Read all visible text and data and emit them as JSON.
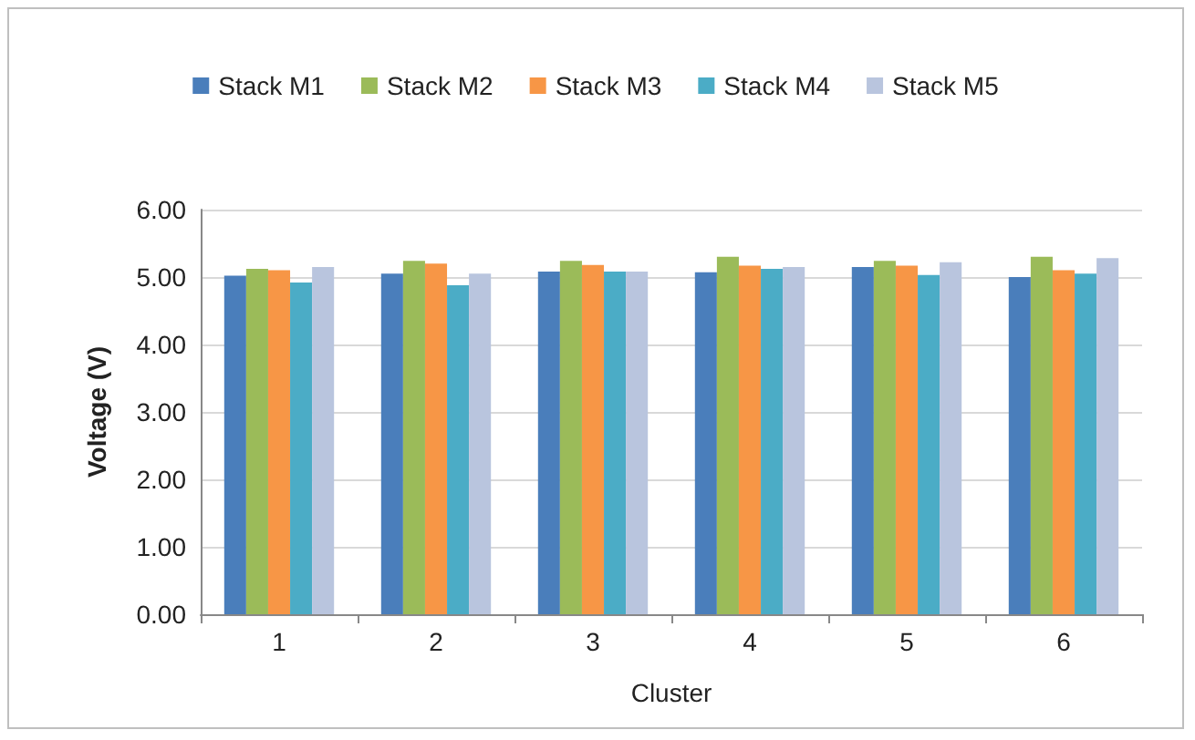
{
  "chart_data": {
    "type": "bar",
    "xlabel": "Cluster",
    "ylabel": "Voltage (V)",
    "categories": [
      "1",
      "2",
      "3",
      "4",
      "5",
      "6"
    ],
    "series": [
      {
        "name": "Stack M1",
        "color": "#4a7ebb",
        "values": [
          5.02,
          5.05,
          5.08,
          5.07,
          5.15,
          5.0
        ]
      },
      {
        "name": "Stack M2",
        "color": "#9bbb59",
        "values": [
          5.12,
          5.24,
          5.24,
          5.3,
          5.24,
          5.3
        ]
      },
      {
        "name": "Stack M3",
        "color": "#f79646",
        "values": [
          5.1,
          5.2,
          5.18,
          5.17,
          5.17,
          5.1
        ]
      },
      {
        "name": "Stack M4",
        "color": "#4bacc6",
        "values": [
          4.92,
          4.88,
          5.08,
          5.12,
          5.03,
          5.05
        ]
      },
      {
        "name": "Stack M5",
        "color": "#b9c5de",
        "values": [
          5.15,
          5.05,
          5.08,
          5.15,
          5.22,
          5.28
        ]
      }
    ],
    "ylim": [
      0,
      6
    ],
    "yticks": [
      {
        "value": 0,
        "label": "0.00"
      },
      {
        "value": 1,
        "label": "1.00"
      },
      {
        "value": 2,
        "label": "2.00"
      },
      {
        "value": 3,
        "label": "3.00"
      },
      {
        "value": 4,
        "label": "4.00"
      },
      {
        "value": 5,
        "label": "5.00"
      },
      {
        "value": 6,
        "label": "6.00"
      }
    ],
    "grid": "y",
    "legend": "top"
  }
}
